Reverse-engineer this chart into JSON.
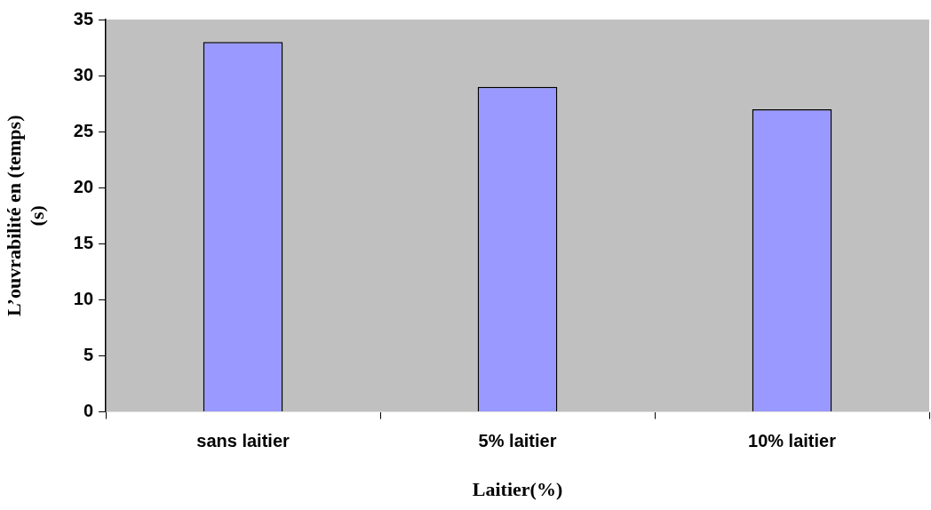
{
  "chart_data": {
    "type": "bar",
    "xlabel": "Laitier(%)",
    "ylabel": "L’ouvrabilité en (temps) (s)",
    "categories": [
      "sans laitier",
      "5% laitier",
      "10% laitier"
    ],
    "values": [
      33,
      29,
      27
    ],
    "color": "#9999ff",
    "ylim": [
      0,
      35
    ],
    "yticks": [
      0,
      5,
      10,
      15,
      20,
      25,
      30,
      35
    ],
    "grid": false,
    "legend": false
  }
}
